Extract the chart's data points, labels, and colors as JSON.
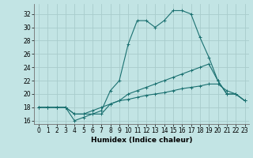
{
  "xlabel": "Humidex (Indice chaleur)",
  "xlim": [
    -0.5,
    23.5
  ],
  "ylim": [
    15.5,
    33.5
  ],
  "xticks": [
    0,
    1,
    2,
    3,
    4,
    5,
    6,
    7,
    8,
    9,
    10,
    11,
    12,
    13,
    14,
    15,
    16,
    17,
    18,
    19,
    20,
    21,
    22,
    23
  ],
  "yticks": [
    16,
    18,
    20,
    22,
    24,
    26,
    28,
    30,
    32
  ],
  "background_color": "#c2e4e4",
  "grid_color": "#a8cccc",
  "line_color": "#1a7070",
  "line1_x": [
    0,
    1,
    2,
    3,
    4,
    5,
    6,
    7,
    8,
    9,
    10,
    11,
    12,
    13,
    14,
    15,
    16,
    17,
    18,
    19,
    20,
    21,
    22,
    23
  ],
  "line1_y": [
    18,
    18,
    18,
    18,
    17,
    17,
    17,
    17.5,
    20.5,
    22,
    27.5,
    31,
    31,
    30,
    31,
    32.5,
    32.5,
    32,
    28.5,
    25.5,
    22,
    20,
    20,
    19
  ],
  "line2_x": [
    0,
    1,
    2,
    3,
    4,
    5,
    6,
    7,
    8,
    9,
    10,
    11,
    12,
    13,
    14,
    15,
    16,
    17,
    18,
    19,
    20,
    21,
    22,
    23
  ],
  "line2_y": [
    18,
    18,
    18,
    18,
    16,
    16.5,
    17,
    17,
    18.5,
    19,
    20,
    20.5,
    21,
    21.5,
    22,
    22.5,
    23,
    23.5,
    24,
    24.5,
    22,
    20,
    20,
    19
  ],
  "line3_x": [
    0,
    1,
    2,
    3,
    4,
    5,
    6,
    7,
    8,
    9,
    10,
    11,
    12,
    13,
    14,
    15,
    16,
    17,
    18,
    19,
    20,
    21,
    22,
    23
  ],
  "line3_y": [
    18,
    18,
    18,
    18,
    17,
    17,
    17.5,
    18,
    18.5,
    19,
    19.2,
    19.5,
    19.8,
    20,
    20.2,
    20.5,
    20.8,
    21,
    21.2,
    21.5,
    21.5,
    20.5,
    20,
    19
  ],
  "tick_fontsize": 5.5,
  "xlabel_fontsize": 6.5,
  "linewidth": 0.8,
  "marker_size": 3.0
}
